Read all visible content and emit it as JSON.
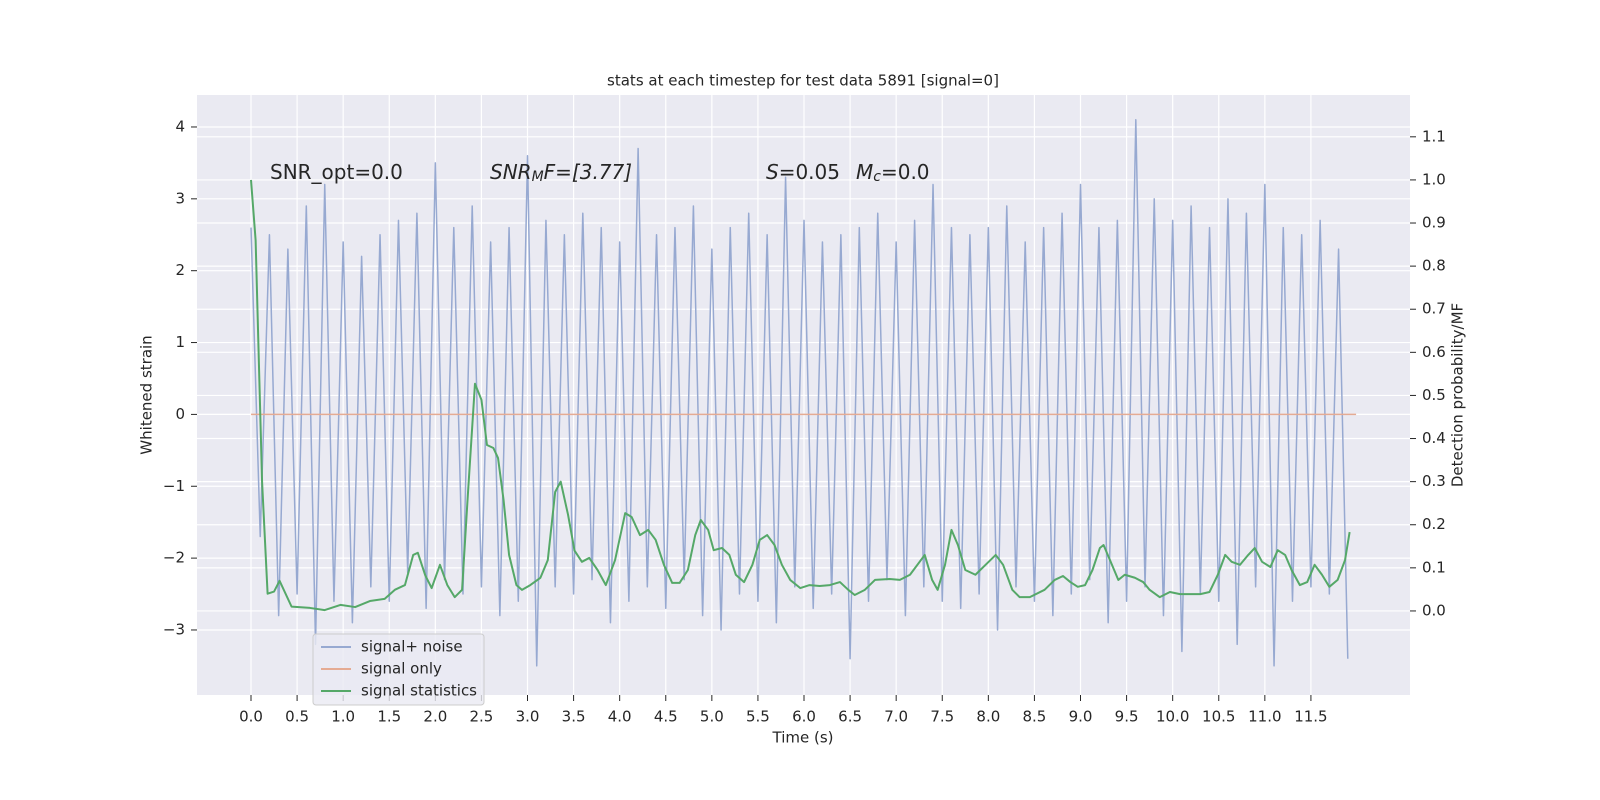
{
  "chart_data": {
    "type": "line",
    "title": "stats at each timestep for test data 5891 [signal=0]",
    "xlabel": "Time (s)",
    "ylabel": "Whitened strain",
    "y2label": "Detection probability/MF",
    "annotations": [
      [
        "SNR_opt=0.0"
      ],
      [
        "SNR",
        "M",
        "F=[3.77]"
      ],
      [
        "S",
        "=0.05",
        "M",
        "c",
        "=0.0"
      ]
    ],
    "xlim": [
      -0.586,
      12.575
    ],
    "ylim": [
      -3.905,
      4.445
    ],
    "y2lim": [
      -0.195,
      1.197
    ],
    "xticks": [
      {
        "value": 0,
        "label": "0.0"
      },
      0.5,
      {
        "value": 1,
        "label": "1.0"
      },
      1.5,
      {
        "value": 2,
        "label": "2.0"
      },
      2.5,
      {
        "value": 3,
        "label": "3.0"
      },
      3.5,
      {
        "value": 4,
        "label": "4.0"
      },
      4.5,
      {
        "value": 5,
        "label": "5.0"
      },
      5.5,
      {
        "value": 6,
        "label": "6.0"
      },
      6.5,
      {
        "value": 7,
        "label": "7.0"
      },
      7.5,
      {
        "value": 8,
        "label": "8.0"
      },
      8.5,
      {
        "value": 9,
        "label": "9.0"
      },
      9.5,
      {
        "value": 10,
        "label": "10.0"
      },
      10.5,
      {
        "value": 11,
        "label": "11.0"
      },
      11.5
    ],
    "yticks": [
      {
        "value": -3,
        "label": "−3"
      },
      {
        "value": -2,
        "label": "−2"
      },
      {
        "value": -1,
        "label": "−1"
      },
      0,
      1,
      2,
      3,
      4
    ],
    "y2ticks": [
      {
        "value": 0,
        "label": "0.0"
      },
      0.1,
      0.2,
      0.3,
      0.4,
      0.5,
      0.6,
      0.7,
      0.8,
      0.9,
      {
        "value": 1,
        "label": "1.0"
      },
      1.1
    ],
    "grid": true,
    "legend": "lower left",
    "series": [
      {
        "name": "signal+ noise",
        "color": "#97a9d1",
        "x": [
          0,
          0.1,
          0.2,
          0.3,
          0.4,
          0.5,
          0.6,
          0.7,
          0.8,
          0.9,
          1,
          1.1,
          1.2,
          1.3,
          1.4,
          1.5,
          1.6,
          1.7,
          1.8,
          1.9,
          2,
          2.1,
          2.2,
          2.3,
          2.4,
          2.5,
          2.6,
          2.7,
          2.8,
          2.9,
          3,
          3.1,
          3.2,
          3.3,
          3.4,
          3.5,
          3.6,
          3.7,
          3.8,
          3.9,
          4,
          4.1,
          4.2,
          4.3,
          4.4,
          4.5,
          4.6,
          4.7,
          4.8,
          4.9,
          5,
          5.1,
          5.2,
          5.3,
          5.4,
          5.5,
          5.6,
          5.7,
          5.8,
          5.9,
          6,
          6.1,
          6.2,
          6.3,
          6.4,
          6.5,
          6.6,
          6.7,
          6.8,
          6.9,
          7,
          7.1,
          7.2,
          7.3,
          7.4,
          7.5,
          7.6,
          7.7,
          7.8,
          7.9,
          8,
          8.1,
          8.2,
          8.3,
          8.4,
          8.5,
          8.6,
          8.7,
          8.8,
          8.9,
          9,
          9.1,
          9.2,
          9.3,
          9.4,
          9.5,
          9.6,
          9.7,
          9.8,
          9.9,
          10,
          10.1,
          10.2,
          10.3,
          10.4,
          10.5,
          10.6,
          10.7,
          10.8,
          10.9,
          11,
          11.1,
          11.2,
          11.3,
          11.4,
          11.5,
          11.6,
          11.7,
          11.8,
          11.9
        ],
        "values": [
          2.6,
          -1.7,
          2.5,
          -2.8,
          2.3,
          -2.5,
          2.9,
          -3.2,
          3.2,
          -2.6,
          2.4,
          -2.9,
          2.2,
          -2.4,
          2.5,
          -2.6,
          2.7,
          -2.2,
          2.8,
          -2.7,
          3.5,
          -2.3,
          2.6,
          -2.5,
          2.9,
          -2.4,
          2.4,
          -2.8,
          2.6,
          -2.6,
          3.6,
          -3.5,
          2.7,
          -2.4,
          2.5,
          -2.5,
          2.8,
          -2.3,
          2.6,
          -2.9,
          2.4,
          -2.6,
          3.7,
          -2.4,
          2.5,
          -2.7,
          2.6,
          -2.3,
          2.9,
          -2.8,
          2.3,
          -3.0,
          2.6,
          -2.5,
          2.8,
          -2.6,
          2.5,
          -2.9,
          3.3,
          -2.4,
          2.7,
          -2.7,
          2.4,
          -2.5,
          2.5,
          -3.4,
          2.6,
          -2.6,
          2.8,
          -2.3,
          2.4,
          -2.8,
          2.7,
          -2.4,
          3.2,
          -2.6,
          2.6,
          -2.7,
          2.5,
          -2.5,
          2.6,
          -3.0,
          2.9,
          -2.4,
          2.4,
          -2.6,
          2.6,
          -2.8,
          2.8,
          -2.5,
          3.2,
          -2.3,
          2.6,
          -2.9,
          2.7,
          -2.6,
          4.1,
          -2.4,
          3.0,
          -2.8,
          2.7,
          -3.3,
          2.9,
          -2.5,
          2.6,
          -2.6,
          3.0,
          -3.2,
          2.8,
          -2.4,
          3.2,
          -3.5,
          2.6,
          -2.6,
          2.5,
          -2.4,
          2.7,
          -2.5,
          2.3,
          -3.4
        ]
      },
      {
        "name": "signal only",
        "color": "#e5ab93",
        "x": [
          0,
          11.99
        ],
        "values": [
          0,
          0
        ]
      },
      {
        "name": "signal statistics",
        "color": "#55a868",
        "axis": "y2",
        "x": [
          0,
          0.05,
          0.12,
          0.18,
          0.25,
          0.31,
          0.44,
          0.64,
          0.8,
          0.97,
          1.13,
          1.29,
          1.45,
          1.56,
          1.67,
          1.76,
          1.81,
          1.89,
          1.96,
          2.05,
          2.13,
          2.21,
          2.29,
          2.35,
          2.43,
          2.5,
          2.56,
          2.63,
          2.68,
          2.74,
          2.8,
          2.88,
          2.94,
          3.03,
          3.14,
          3.22,
          3.3,
          3.36,
          3.44,
          3.51,
          3.59,
          3.67,
          3.76,
          3.85,
          3.95,
          4.06,
          4.13,
          4.22,
          4.31,
          4.39,
          4.48,
          4.57,
          4.65,
          4.74,
          4.82,
          4.88,
          4.96,
          5.02,
          5.11,
          5.19,
          5.26,
          5.35,
          5.44,
          5.52,
          5.6,
          5.68,
          5.76,
          5.85,
          5.96,
          6.06,
          6.17,
          6.28,
          6.39,
          6.48,
          6.55,
          6.66,
          6.77,
          6.93,
          7.04,
          7.15,
          7.31,
          7.39,
          7.45,
          7.53,
          7.6,
          7.67,
          7.75,
          7.86,
          7.97,
          8.08,
          8.16,
          8.26,
          8.34,
          8.45,
          8.61,
          8.72,
          8.81,
          8.89,
          8.97,
          9.05,
          9.13,
          9.21,
          9.25,
          9.32,
          9.41,
          9.48,
          9.59,
          9.68,
          9.75,
          9.86,
          9.97,
          10.08,
          10.19,
          10.3,
          10.4,
          10.49,
          10.57,
          10.64,
          10.73,
          10.82,
          10.89,
          10.97,
          11.06,
          11.14,
          11.22,
          11.29,
          11.38,
          11.46,
          11.54,
          11.62,
          11.7,
          11.79,
          11.87,
          11.92
        ],
        "values": [
          1.0,
          0.86,
          0.3,
          0.04,
          0.045,
          0.07,
          0.01,
          0.007,
          0.002,
          0.014,
          0.009,
          0.023,
          0.028,
          0.049,
          0.06,
          0.13,
          0.135,
          0.083,
          0.053,
          0.107,
          0.06,
          0.032,
          0.049,
          0.26,
          0.527,
          0.49,
          0.385,
          0.378,
          0.355,
          0.258,
          0.13,
          0.06,
          0.049,
          0.06,
          0.077,
          0.118,
          0.276,
          0.3,
          0.223,
          0.14,
          0.114,
          0.123,
          0.095,
          0.06,
          0.118,
          0.227,
          0.218,
          0.176,
          0.188,
          0.165,
          0.107,
          0.065,
          0.065,
          0.095,
          0.176,
          0.211,
          0.188,
          0.141,
          0.146,
          0.13,
          0.084,
          0.067,
          0.107,
          0.165,
          0.176,
          0.153,
          0.107,
          0.072,
          0.053,
          0.06,
          0.058,
          0.06,
          0.067,
          0.049,
          0.037,
          0.049,
          0.072,
          0.074,
          0.072,
          0.084,
          0.13,
          0.072,
          0.049,
          0.107,
          0.188,
          0.153,
          0.095,
          0.084,
          0.107,
          0.13,
          0.107,
          0.049,
          0.032,
          0.032,
          0.049,
          0.072,
          0.081,
          0.067,
          0.056,
          0.06,
          0.095,
          0.146,
          0.153,
          0.118,
          0.072,
          0.084,
          0.077,
          0.067,
          0.049,
          0.032,
          0.044,
          0.039,
          0.039,
          0.039,
          0.044,
          0.084,
          0.13,
          0.114,
          0.107,
          0.13,
          0.146,
          0.114,
          0.102,
          0.141,
          0.13,
          0.095,
          0.06,
          0.067,
          0.107,
          0.084,
          0.056,
          0.072,
          0.118,
          0.183
        ]
      }
    ]
  }
}
